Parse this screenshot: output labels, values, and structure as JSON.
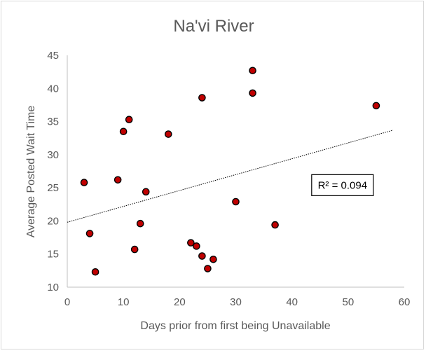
{
  "chart_data": {
    "type": "scatter",
    "title": "Na'vi River",
    "xlabel": "Days prior from first being Unavailable",
    "ylabel": "Average Posted Wait Time",
    "xlim": [
      0,
      60
    ],
    "ylim": [
      10,
      45
    ],
    "x_ticks": [
      "0",
      "10",
      "20",
      "30",
      "40",
      "50",
      "60"
    ],
    "y_ticks": [
      "10",
      "15",
      "20",
      "25",
      "30",
      "35",
      "40",
      "45"
    ],
    "grid": false,
    "marker_color": "#c00000",
    "marker_edge_color": "#000000",
    "points": [
      {
        "x": 3,
        "y": 25.8
      },
      {
        "x": 4,
        "y": 18.1
      },
      {
        "x": 5,
        "y": 12.3
      },
      {
        "x": 9,
        "y": 26.2
      },
      {
        "x": 10,
        "y": 33.5
      },
      {
        "x": 11,
        "y": 35.3
      },
      {
        "x": 12,
        "y": 15.7
      },
      {
        "x": 13,
        "y": 19.6
      },
      {
        "x": 14,
        "y": 24.4
      },
      {
        "x": 18,
        "y": 33.1
      },
      {
        "x": 22,
        "y": 16.7
      },
      {
        "x": 23,
        "y": 16.2
      },
      {
        "x": 24,
        "y": 38.6
      },
      {
        "x": 24,
        "y": 14.7
      },
      {
        "x": 25,
        "y": 12.8
      },
      {
        "x": 26,
        "y": 14.2
      },
      {
        "x": 30,
        "y": 22.9
      },
      {
        "x": 33,
        "y": 42.7
      },
      {
        "x": 33,
        "y": 39.3
      },
      {
        "x": 37,
        "y": 19.4
      },
      {
        "x": 55,
        "y": 37.4
      }
    ],
    "trendline": {
      "type": "linear",
      "x_start": 0,
      "y_start": 19.8,
      "x_end": 58,
      "y_end": 33.7,
      "style": "dotted",
      "color": "#000000"
    },
    "annotation": {
      "label": "R² = 0.094",
      "anchor_x": 49,
      "anchor_y": 25.4
    }
  }
}
